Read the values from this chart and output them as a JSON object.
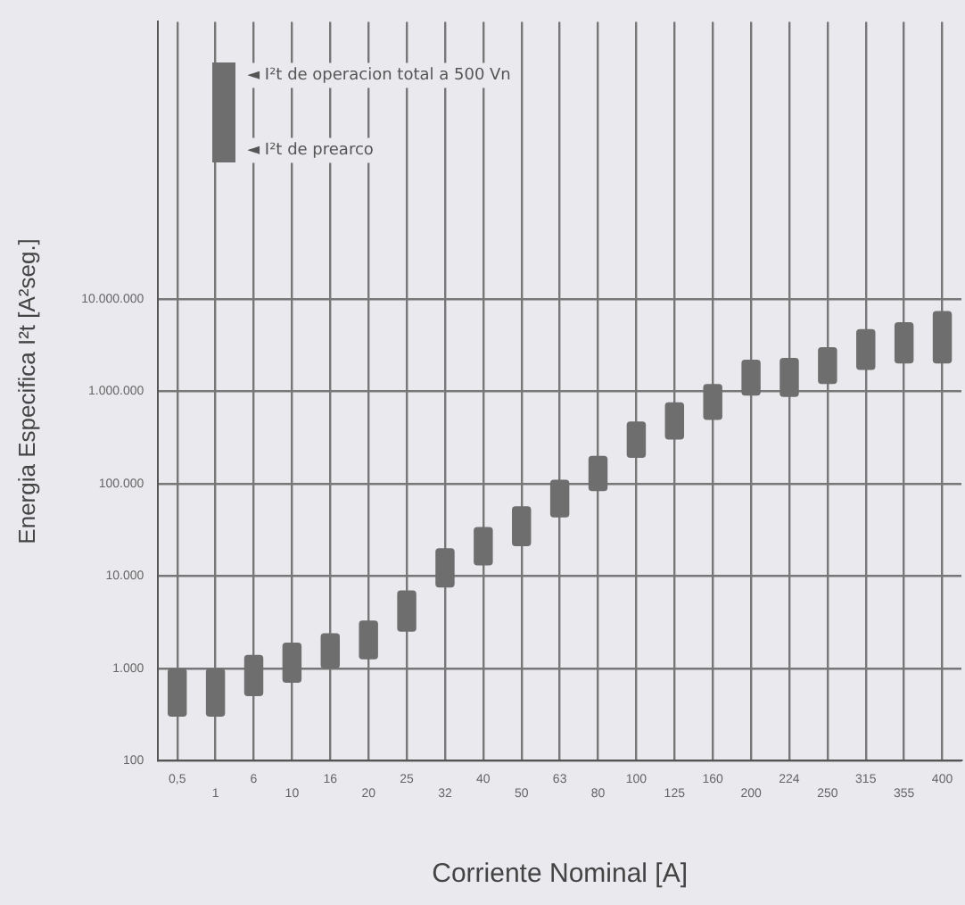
{
  "chart_data": {
    "type": "bar",
    "xlabel": "Corriente Nominal [A]",
    "ylabel": "Energia Especifica I²t [A²seg.]",
    "categories": [
      "0,5",
      "1",
      "6",
      "10",
      "16",
      "20",
      "25",
      "32",
      "40",
      "50",
      "63",
      "80",
      "100",
      "125",
      "160",
      "200",
      "224",
      "250",
      "315",
      "355",
      "400"
    ],
    "base": [
      300,
      300,
      500,
      700,
      1000,
      1250,
      2500,
      7500,
      13000,
      21000,
      43000,
      83000,
      190000,
      300000,
      490000,
      900000,
      870000,
      1200000,
      1700000,
      2000000,
      2000000
    ],
    "values": [
      700,
      700,
      900,
      1200,
      1400,
      2050,
      4500,
      12500,
      21000,
      36000,
      67000,
      117000,
      280000,
      460000,
      710000,
      1300000,
      1430000,
      1800000,
      3000000,
      3600000,
      5400000
    ],
    "color": "#6e6e6e",
    "log": "y",
    "ylim": [
      100,
      10000000000
    ],
    "yticks": [
      100,
      {
        "value": 1000,
        "label": "1.000"
      },
      {
        "value": 10000,
        "label": "10.000"
      },
      {
        "value": 100000,
        "label": "100.000"
      },
      {
        "value": 1000000,
        "label": "1.000.000"
      },
      {
        "value": 10000000,
        "label": "10.000.000"
      }
    ],
    "grid": true,
    "annotations": [
      "◄ I²t de operacion total a 500 Vn",
      "◄ I²t de prearco"
    ]
  }
}
